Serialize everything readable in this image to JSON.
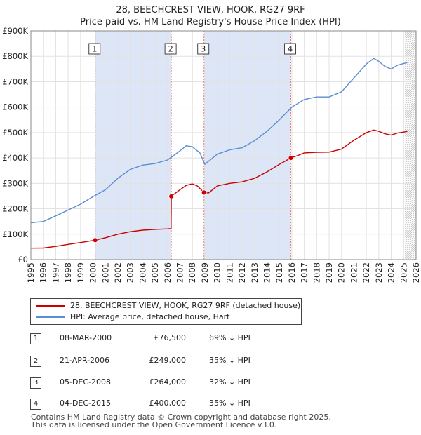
{
  "title": {
    "line1": "28, BEECHCREST VIEW, HOOK, RG27 9RF",
    "line2": "Price paid vs. HM Land Registry's House Price Index (HPI)"
  },
  "colors": {
    "property": "#cc0000",
    "hpi": "#5b8ed1",
    "highlight": "#dde6f6",
    "vline": "#e88080"
  },
  "legend": {
    "property_label": "28, BEECHCREST VIEW, HOOK, RG27 9RF (detached house)",
    "hpi_label": "HPI: Average price, detached house, Hart"
  },
  "sales": [
    {
      "num": "1",
      "date": "08-MAR-2000",
      "price": "£76,500",
      "hpi_rel": "69% ↓ HPI"
    },
    {
      "num": "2",
      "date": "21-APR-2006",
      "price": "£249,000",
      "hpi_rel": "35% ↓ HPI"
    },
    {
      "num": "3",
      "date": "05-DEC-2008",
      "price": "£264,000",
      "hpi_rel": "32% ↓ HPI"
    },
    {
      "num": "4",
      "date": "04-DEC-2015",
      "price": "£400,000",
      "hpi_rel": "35% ↓ HPI"
    }
  ],
  "footer": {
    "line1": "Contains HM Land Registry data © Crown copyright and database right 2025.",
    "line2": "This data is licensed under the Open Government Licence v3.0."
  },
  "chart_data": {
    "type": "line",
    "title": "28, BEECHCREST VIEW, HOOK, RG27 9RF — Price paid vs. HM Land Registry's House Price Index (HPI)",
    "xlabel": "",
    "ylabel": "",
    "xlim": [
      1995,
      2026
    ],
    "ylim": [
      0,
      900000
    ],
    "grid": true,
    "x_ticks": [
      1995,
      1996,
      1997,
      1998,
      1999,
      2000,
      2001,
      2002,
      2003,
      2004,
      2005,
      2006,
      2007,
      2008,
      2009,
      2010,
      2011,
      2012,
      2013,
      2014,
      2015,
      2016,
      2017,
      2018,
      2019,
      2020,
      2021,
      2022,
      2023,
      2024,
      2025,
      2026
    ],
    "y_ticks": [
      {
        "value": 0,
        "label": "£0"
      },
      {
        "value": 100000,
        "label": "£100K"
      },
      {
        "value": 200000,
        "label": "£200K"
      },
      {
        "value": 300000,
        "label": "£300K"
      },
      {
        "value": 400000,
        "label": "£400K"
      },
      {
        "value": 500000,
        "label": "£500K"
      },
      {
        "value": 600000,
        "label": "£600K"
      },
      {
        "value": 700000,
        "label": "£700K"
      },
      {
        "value": 800000,
        "label": "£800K"
      },
      {
        "value": 900000,
        "label": "£900K"
      }
    ],
    "highlight_ranges": [
      [
        2000.18,
        2006.3
      ],
      [
        2008.93,
        2015.92
      ]
    ],
    "markers": [
      {
        "label": "1",
        "x": 2000.18,
        "y": 76500
      },
      {
        "label": "2",
        "x": 2006.3,
        "y": 249000
      },
      {
        "label": "3",
        "x": 2008.93,
        "y": 264000
      },
      {
        "label": "4",
        "x": 2015.92,
        "y": 400000
      }
    ],
    "forecast_start": 2025.1,
    "series": [
      {
        "name": "28, BEECHCREST VIEW, HOOK, RG27 9RF (detached house)",
        "color": "#cc0000",
        "points": [
          [
            1995.0,
            45000
          ],
          [
            1996.0,
            45500
          ],
          [
            1997.0,
            52000
          ],
          [
            1998.0,
            60000
          ],
          [
            1999.0,
            67000
          ],
          [
            2000.18,
            76500
          ],
          [
            2001.0,
            86000
          ],
          [
            2002.0,
            100000
          ],
          [
            2003.0,
            110000
          ],
          [
            2004.0,
            116000
          ],
          [
            2005.0,
            119000
          ],
          [
            2006.0,
            121000
          ],
          [
            2006.28,
            122000
          ],
          [
            2006.3,
            249000
          ],
          [
            2007.0,
            275000
          ],
          [
            2007.5,
            292000
          ],
          [
            2008.0,
            298000
          ],
          [
            2008.4,
            290000
          ],
          [
            2008.93,
            264000
          ],
          [
            2009.3,
            262000
          ],
          [
            2010.0,
            290000
          ],
          [
            2011.0,
            300000
          ],
          [
            2012.0,
            306000
          ],
          [
            2013.0,
            320000
          ],
          [
            2014.0,
            345000
          ],
          [
            2015.0,
            375000
          ],
          [
            2015.92,
            400000
          ],
          [
            2016.5,
            410000
          ],
          [
            2017.0,
            420000
          ],
          [
            2018.0,
            422000
          ],
          [
            2019.0,
            423000
          ],
          [
            2020.0,
            435000
          ],
          [
            2021.0,
            470000
          ],
          [
            2022.0,
            500000
          ],
          [
            2022.6,
            510000
          ],
          [
            2023.0,
            505000
          ],
          [
            2023.5,
            495000
          ],
          [
            2024.0,
            490000
          ],
          [
            2024.5,
            498000
          ],
          [
            2025.0,
            502000
          ],
          [
            2025.3,
            505000
          ]
        ]
      },
      {
        "name": "HPI: Average price, detached house, Hart",
        "color": "#5b8ed1",
        "points": [
          [
            1995.0,
            145000
          ],
          [
            1996.0,
            150000
          ],
          [
            1997.0,
            172000
          ],
          [
            1998.0,
            195000
          ],
          [
            1999.0,
            218000
          ],
          [
            2000.0,
            248000
          ],
          [
            2001.0,
            275000
          ],
          [
            2002.0,
            320000
          ],
          [
            2003.0,
            355000
          ],
          [
            2004.0,
            372000
          ],
          [
            2005.0,
            378000
          ],
          [
            2006.0,
            392000
          ],
          [
            2007.0,
            428000
          ],
          [
            2007.5,
            448000
          ],
          [
            2008.0,
            444000
          ],
          [
            2008.6,
            420000
          ],
          [
            2009.0,
            375000
          ],
          [
            2009.5,
            395000
          ],
          [
            2010.0,
            415000
          ],
          [
            2011.0,
            432000
          ],
          [
            2012.0,
            440000
          ],
          [
            2013.0,
            468000
          ],
          [
            2014.0,
            505000
          ],
          [
            2015.0,
            550000
          ],
          [
            2016.0,
            600000
          ],
          [
            2017.0,
            630000
          ],
          [
            2018.0,
            640000
          ],
          [
            2019.0,
            640000
          ],
          [
            2020.0,
            660000
          ],
          [
            2021.0,
            715000
          ],
          [
            2022.0,
            770000
          ],
          [
            2022.6,
            792000
          ],
          [
            2023.0,
            780000
          ],
          [
            2023.5,
            760000
          ],
          [
            2024.0,
            750000
          ],
          [
            2024.5,
            765000
          ],
          [
            2025.0,
            772000
          ],
          [
            2025.3,
            775000
          ]
        ]
      }
    ]
  }
}
